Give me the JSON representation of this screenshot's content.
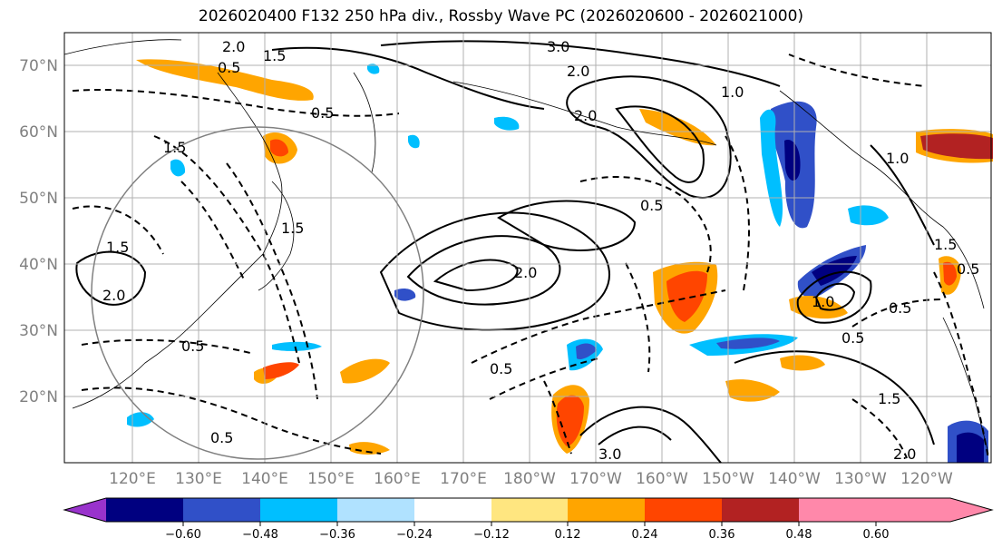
{
  "title": "2026020400 F132 250 hPa div., Rossby Wave PC (2026020600 - 2026021000)",
  "map": {
    "lat_labels": [
      "70°N",
      "60°N",
      "50°N",
      "40°N",
      "30°N",
      "20°N"
    ],
    "lon_labels": [
      "120°E",
      "130°E",
      "140°E",
      "150°E",
      "160°E",
      "170°E",
      "180°W",
      "170°W",
      "160°W",
      "150°W",
      "140°W",
      "130°W",
      "120°W"
    ],
    "contour_labels": [
      "2.0",
      "3.0",
      "2.0",
      "1.0",
      "0.5",
      "1.5",
      "0.5",
      "2.0",
      "1.0",
      "1.5",
      "2.0",
      "0.5",
      "2.0",
      "1.5",
      "0.5",
      "0.5",
      "1.5",
      "3.0",
      "2.0",
      "0.5",
      "1.0",
      "0.5",
      "1.5",
      "0.5",
      "0.5",
      "1.5"
    ]
  },
  "colorbar": {
    "colors": [
      "#9933cc",
      "#000080",
      "#3050c8",
      "#00bfff",
      "#b0e2ff",
      "#ffffff",
      "#ffe680",
      "#ffa500",
      "#ff4500",
      "#b22222",
      "#ff88aa"
    ],
    "tick_labels": [
      "−0.60",
      "−0.48",
      "−0.36",
      "−0.24",
      "−0.12",
      "0.12",
      "0.24",
      "0.36",
      "0.48",
      "0.60"
    ]
  }
}
